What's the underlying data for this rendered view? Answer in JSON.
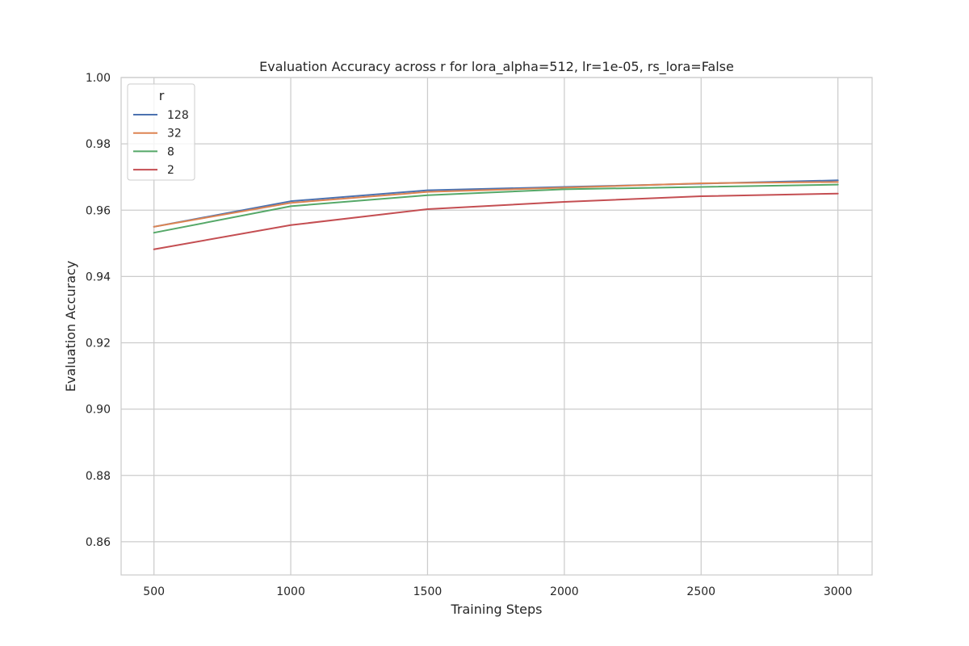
{
  "chart_data": {
    "type": "line",
    "title": "Evaluation Accuracy across r for lora_alpha=512, lr=1e-05, rs_lora=False",
    "xlabel": "Training Steps",
    "ylabel": "Evaluation Accuracy",
    "x": [
      500,
      1000,
      1500,
      2000,
      2500,
      3000
    ],
    "xlim": [
      380,
      3125
    ],
    "ylim": [
      0.85,
      1.0
    ],
    "xticks": [
      500,
      1000,
      1500,
      2000,
      2500,
      3000
    ],
    "xtick_labels": [
      "500",
      "1000",
      "1500",
      "2000",
      "2500",
      "3000"
    ],
    "yticks": [
      0.86,
      0.88,
      0.9,
      0.92,
      0.94,
      0.96,
      0.98,
      1.0
    ],
    "ytick_labels": [
      "0.86",
      "0.88",
      "0.90",
      "0.92",
      "0.94",
      "0.96",
      "0.98",
      "1.00"
    ],
    "grid": true,
    "legend": {
      "title": "r",
      "placement": "top-left"
    },
    "series": [
      {
        "name": "128",
        "color": "#4c72b0",
        "values": [
          0.955,
          0.9627,
          0.966,
          0.967,
          0.968,
          0.969
        ]
      },
      {
        "name": "32",
        "color": "#dd8452",
        "values": [
          0.955,
          0.9622,
          0.9655,
          0.9668,
          0.9681,
          0.9685
        ]
      },
      {
        "name": "8",
        "color": "#55a868",
        "values": [
          0.9532,
          0.9612,
          0.9645,
          0.9663,
          0.967,
          0.9677
        ]
      },
      {
        "name": "2",
        "color": "#c44e52",
        "values": [
          0.9482,
          0.9555,
          0.9603,
          0.9625,
          0.9642,
          0.965
        ]
      }
    ]
  }
}
